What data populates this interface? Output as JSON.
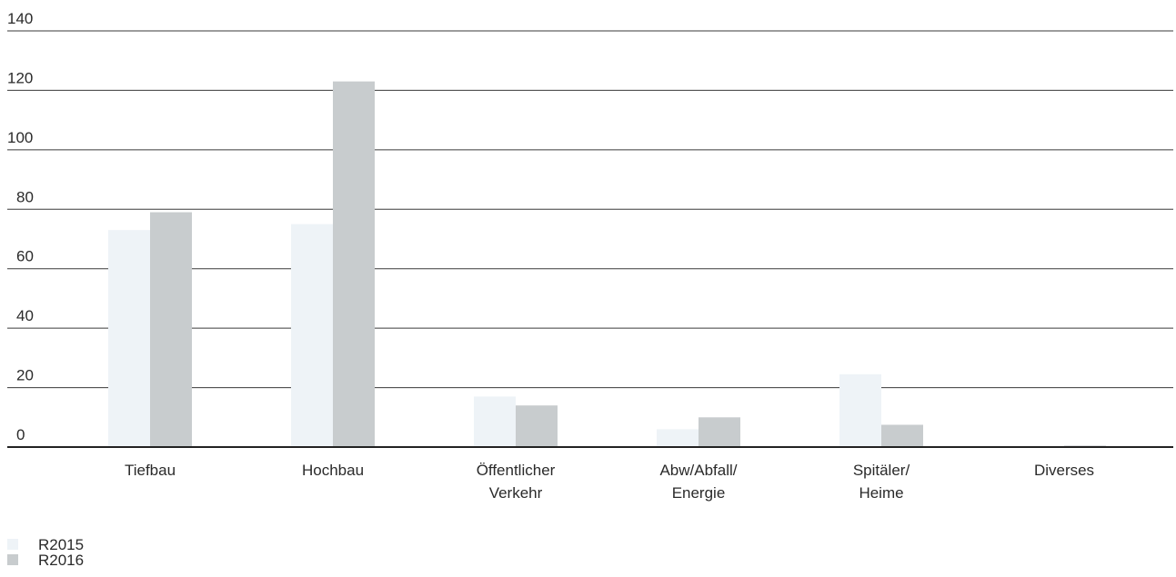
{
  "chart_data": {
    "type": "bar",
    "categories": [
      [
        "Tiefbau"
      ],
      [
        "Hochbau"
      ],
      [
        "Öffentlicher",
        "Verkehr"
      ],
      [
        "Abw/Abfall/",
        "Energie"
      ],
      [
        "Spitäler/",
        "Heime"
      ],
      [
        "Diverses"
      ]
    ],
    "series": [
      {
        "name": "R2015",
        "color": "#eef3f7",
        "values": [
          73,
          75,
          17,
          6,
          24.5,
          0
        ]
      },
      {
        "name": "R2016",
        "color": "#c8ccce",
        "values": [
          79,
          123,
          14,
          10,
          7.5,
          0.5
        ]
      }
    ],
    "yticks": [
      0,
      20,
      40,
      60,
      80,
      100,
      120,
      140
    ],
    "ylim": [
      0,
      140
    ],
    "grid": true,
    "legend_position": "bottom-left"
  }
}
